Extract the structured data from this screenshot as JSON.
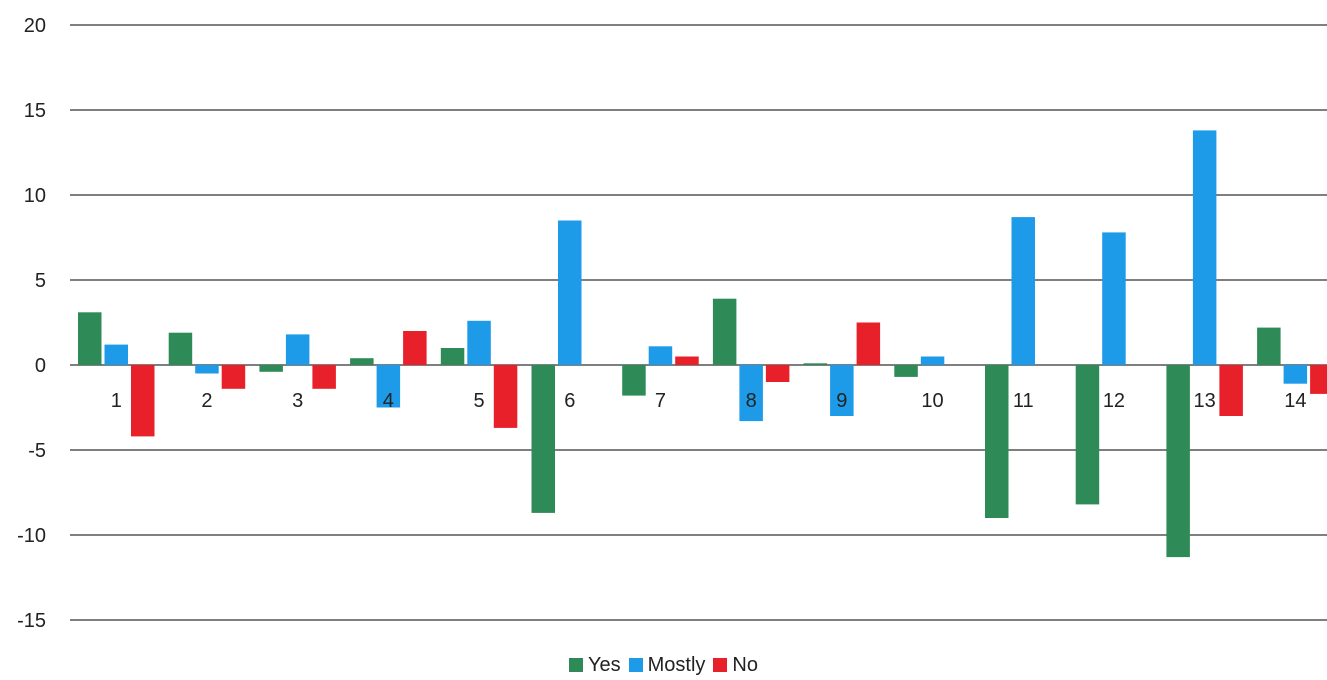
{
  "chart_data": {
    "type": "bar",
    "title": "",
    "xlabel": "",
    "ylabel": "",
    "categories": [
      "1",
      "2",
      "3",
      "4",
      "5",
      "6",
      "7",
      "8",
      "9",
      "10",
      "11",
      "12",
      "13",
      "14"
    ],
    "ylim": [
      -15,
      20
    ],
    "yticks": [
      20,
      15,
      10,
      5,
      0,
      -5,
      -10,
      -15
    ],
    "grid": true,
    "legend_position": "bottom",
    "series": [
      {
        "name": "Yes",
        "color": "#2e8b57",
        "values": [
          3.1,
          1.9,
          -0.4,
          0.4,
          1.0,
          -8.7,
          -1.8,
          3.9,
          0.1,
          -0.7,
          -9.0,
          -8.2,
          -11.3,
          2.2
        ]
      },
      {
        "name": "Mostly",
        "color": "#1e9be8",
        "values": [
          1.2,
          -0.5,
          1.8,
          -2.5,
          2.6,
          8.5,
          1.1,
          -3.3,
          -3.0,
          0.5,
          8.7,
          7.8,
          13.8,
          -1.1
        ]
      },
      {
        "name": "No",
        "color": "#e8202a",
        "values": [
          -4.2,
          -1.4,
          -1.4,
          2.0,
          -3.7,
          0,
          0.5,
          -1.0,
          2.5,
          0,
          0,
          0,
          -3.0,
          -1.7
        ]
      }
    ]
  }
}
